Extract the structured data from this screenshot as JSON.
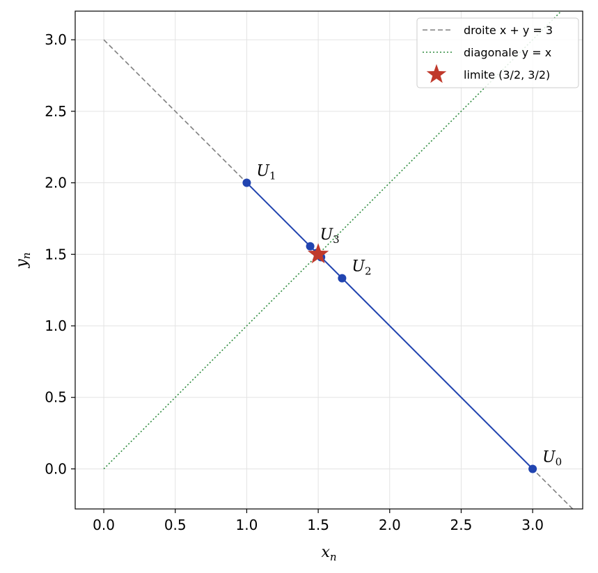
{
  "chart_data": {
    "type": "line",
    "xlabel": "x",
    "xlabel_sub": "n",
    "ylabel": "y",
    "ylabel_sub": "n",
    "xlim": [
      -0.2,
      3.35
    ],
    "ylim": [
      -0.28,
      3.2
    ],
    "xticks": [
      "0.0",
      "0.5",
      "1.0",
      "1.5",
      "2.0",
      "2.5",
      "3.0"
    ],
    "yticks": [
      "0.0",
      "0.5",
      "1.0",
      "1.5",
      "2.0",
      "2.5",
      "3.0"
    ],
    "grid": true,
    "legend_position": "top-right",
    "series": [
      {
        "name": "droite x + y = 3",
        "style": "dashed",
        "color": "#7f7f7f",
        "x": [
          0,
          3.3
        ],
        "y": [
          3,
          -0.3
        ]
      },
      {
        "name": "diagonale y = x",
        "style": "dotted",
        "color": "#2e8b3e",
        "x": [
          0,
          3.2
        ],
        "y": [
          0,
          3.2
        ]
      },
      {
        "name": "",
        "style": "solid-markers",
        "color": "#2144b0",
        "x": [
          3.0,
          1.0,
          1.667,
          1.444,
          1.52,
          1.49
        ],
        "y": [
          0.0,
          2.0,
          1.333,
          1.556,
          1.48,
          1.51
        ]
      }
    ],
    "points": [
      {
        "label": "U",
        "sub": "0",
        "x": 3.0,
        "y": 0.0
      },
      {
        "label": "U",
        "sub": "1",
        "x": 1.0,
        "y": 2.0
      },
      {
        "label": "U",
        "sub": "2",
        "x": 1.667,
        "y": 1.333
      },
      {
        "label": "U",
        "sub": "3",
        "x": 1.444,
        "y": 1.556
      }
    ],
    "limit": {
      "name": "limite (3/2, 3/2)",
      "x": 1.5,
      "y": 1.5,
      "color": "#c0392b"
    },
    "legend": [
      {
        "label": "droite x + y = 3",
        "marker": "dashed",
        "color": "#7f7f7f"
      },
      {
        "label": "diagonale y = x",
        "marker": "dotted",
        "color": "#2e8b3e"
      },
      {
        "label": "limite (3/2, 3/2)",
        "marker": "star",
        "color": "#c0392b"
      }
    ]
  }
}
